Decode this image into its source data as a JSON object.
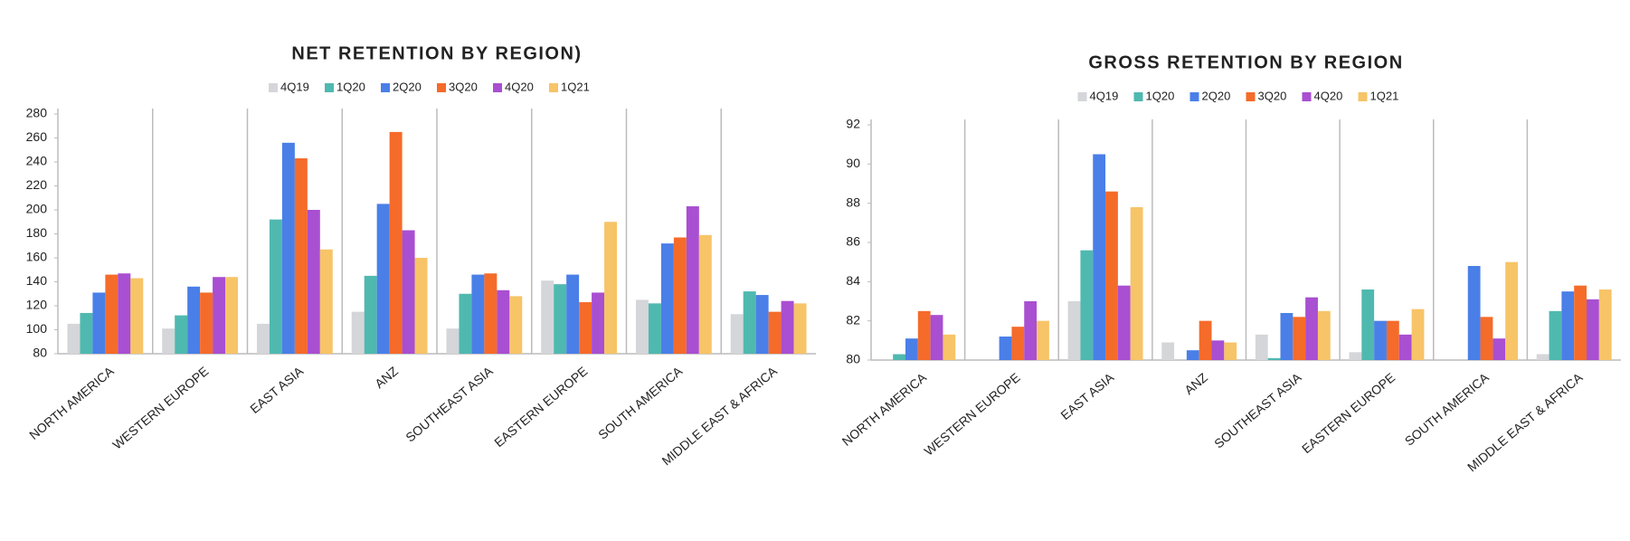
{
  "chart_data": [
    {
      "type": "bar",
      "title": "NET RETENTION BY REGION)",
      "categories": [
        "NORTH AMERICA",
        "WESTERN EUROPE",
        "EAST ASIA",
        "ANZ",
        "SOUTHEAST ASIA",
        "EASTERN EUROPE",
        "SOUTH AMERICA",
        "MIDDLE EAST & AFRICA"
      ],
      "series": [
        {
          "name": "4Q19",
          "color": "#d4d6d9",
          "values": [
            105,
            101,
            105,
            115,
            101,
            141,
            125,
            113
          ]
        },
        {
          "name": "1Q20",
          "color": "#4fb9b0",
          "values": [
            114,
            112,
            192,
            145,
            130,
            138,
            122,
            132
          ]
        },
        {
          "name": "2Q20",
          "color": "#4a7fe8",
          "values": [
            131,
            136,
            256,
            205,
            146,
            146,
            172,
            129
          ]
        },
        {
          "name": "3Q20",
          "color": "#f56b2a",
          "values": [
            146,
            131,
            243,
            265,
            147,
            123,
            177,
            115
          ]
        },
        {
          "name": "4Q20",
          "color": "#a94fd1",
          "values": [
            147,
            144,
            200,
            183,
            133,
            131,
            203,
            124
          ]
        },
        {
          "name": "1Q21",
          "color": "#f7c467",
          "values": [
            143,
            144,
            167,
            160,
            128,
            190,
            179,
            122
          ]
        }
      ],
      "ylim": [
        80,
        280
      ],
      "yticks": [
        80,
        100,
        120,
        140,
        160,
        180,
        200,
        220,
        240,
        260,
        280
      ]
    },
    {
      "type": "bar",
      "title": "GROSS RETENTION BY REGION",
      "categories": [
        "NORTH AMERICA",
        "WESTERN EUROPE",
        "EAST ASIA",
        "ANZ",
        "SOUTHEAST ASIA",
        "EASTERN EUROPE",
        "SOUTH AMERICA",
        "MIDDLE EAST & AFRICA"
      ],
      "series": [
        {
          "name": "4Q19",
          "color": "#d4d6d9",
          "values": [
            null,
            null,
            83.0,
            80.9,
            81.3,
            80.4,
            null,
            80.3
          ]
        },
        {
          "name": "1Q20",
          "color": "#4fb9b0",
          "values": [
            80.3,
            null,
            85.6,
            null,
            80.1,
            83.6,
            null,
            82.5
          ]
        },
        {
          "name": "2Q20",
          "color": "#4a7fe8",
          "values": [
            81.1,
            81.2,
            90.5,
            80.5,
            82.4,
            82.0,
            84.8,
            83.5
          ]
        },
        {
          "name": "3Q20",
          "color": "#f56b2a",
          "values": [
            82.5,
            81.7,
            88.6,
            82.0,
            82.2,
            82.0,
            82.2,
            83.8
          ]
        },
        {
          "name": "4Q20",
          "color": "#a94fd1",
          "values": [
            82.3,
            83.0,
            83.8,
            81.0,
            83.2,
            81.3,
            81.1,
            83.1
          ]
        },
        {
          "name": "1Q21",
          "color": "#f7c467",
          "values": [
            81.3,
            82.0,
            87.8,
            80.9,
            82.5,
            82.6,
            85.0,
            83.6
          ]
        }
      ],
      "ylim": [
        80,
        92
      ],
      "yticks": [
        80,
        82,
        84,
        86,
        88,
        90,
        92
      ]
    }
  ]
}
